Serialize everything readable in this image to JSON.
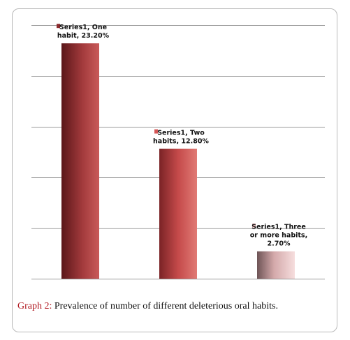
{
  "caption": {
    "label": "Graph 2:",
    "text": " Prevalence of number of different deleterious oral habits."
  },
  "colors": {
    "bar_dark": "#6d1f22",
    "bar_mid": "#c54a4a",
    "bar_light_dark": "#7a5a5c",
    "bar_light": "#f1c7c7",
    "grid": "#9a9a9a",
    "caption_label": "#b0171f"
  },
  "chart_data": {
    "type": "bar",
    "categories": [
      "One habit",
      "Two habits",
      "Three or more habits"
    ],
    "series": [
      {
        "name": "Series1",
        "values": [
          23.2,
          12.8,
          2.7
        ]
      }
    ],
    "ylim": [
      0,
      25
    ],
    "grid": true,
    "data_labels": [
      [
        "Series1, One",
        "habit, 23.20%"
      ],
      [
        "Series1, Two",
        "habits,  12.80%"
      ],
      [
        "Series1, Three",
        "or more habits,",
        "2.70%"
      ]
    ],
    "title": "",
    "xlabel": "",
    "ylabel": ""
  }
}
